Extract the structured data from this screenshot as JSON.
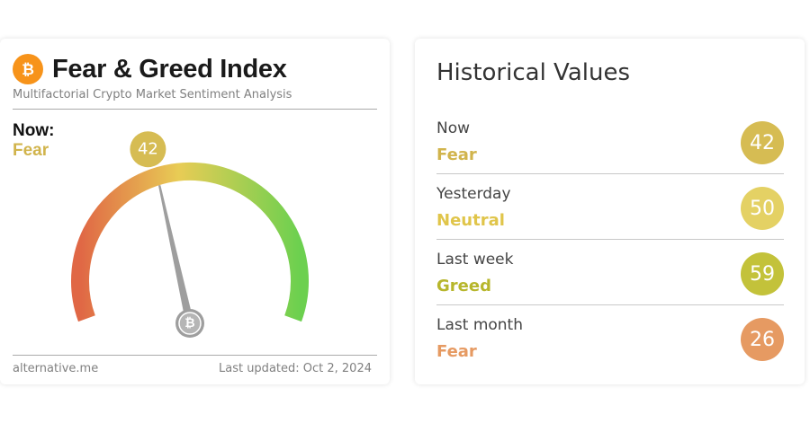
{
  "index_card": {
    "title": "Fear & Greed Index",
    "subtitle": "Multifactorial Crypto Market Sentiment Analysis",
    "logo_icon": "bitcoin-icon",
    "now_label": "Now:",
    "now_classification": "Fear",
    "value": "42",
    "gauge_value": 42,
    "gauge_range": [
      0,
      100
    ],
    "footer_source": "alternative.me",
    "footer_updated": "Last updated: Oct 2, 2024"
  },
  "historical": {
    "title": "Historical Values",
    "rows": [
      {
        "period": "Now",
        "classification": "Fear",
        "value": "42",
        "color": "#d6bc53"
      },
      {
        "period": "Yesterday",
        "classification": "Neutral",
        "value": "50",
        "color": "#e4d164"
      },
      {
        "period": "Last week",
        "classification": "Greed",
        "value": "59",
        "color": "#c3c23a"
      },
      {
        "period": "Last month",
        "classification": "Fear",
        "value": "26",
        "color": "#e69a62"
      }
    ]
  },
  "colors": {
    "fear": "#d1b44c",
    "gauge_low": "#e06745",
    "gauge_mid": "#e8cc55",
    "gauge_high": "#6cd04f",
    "bitcoin": "#f7931a"
  }
}
